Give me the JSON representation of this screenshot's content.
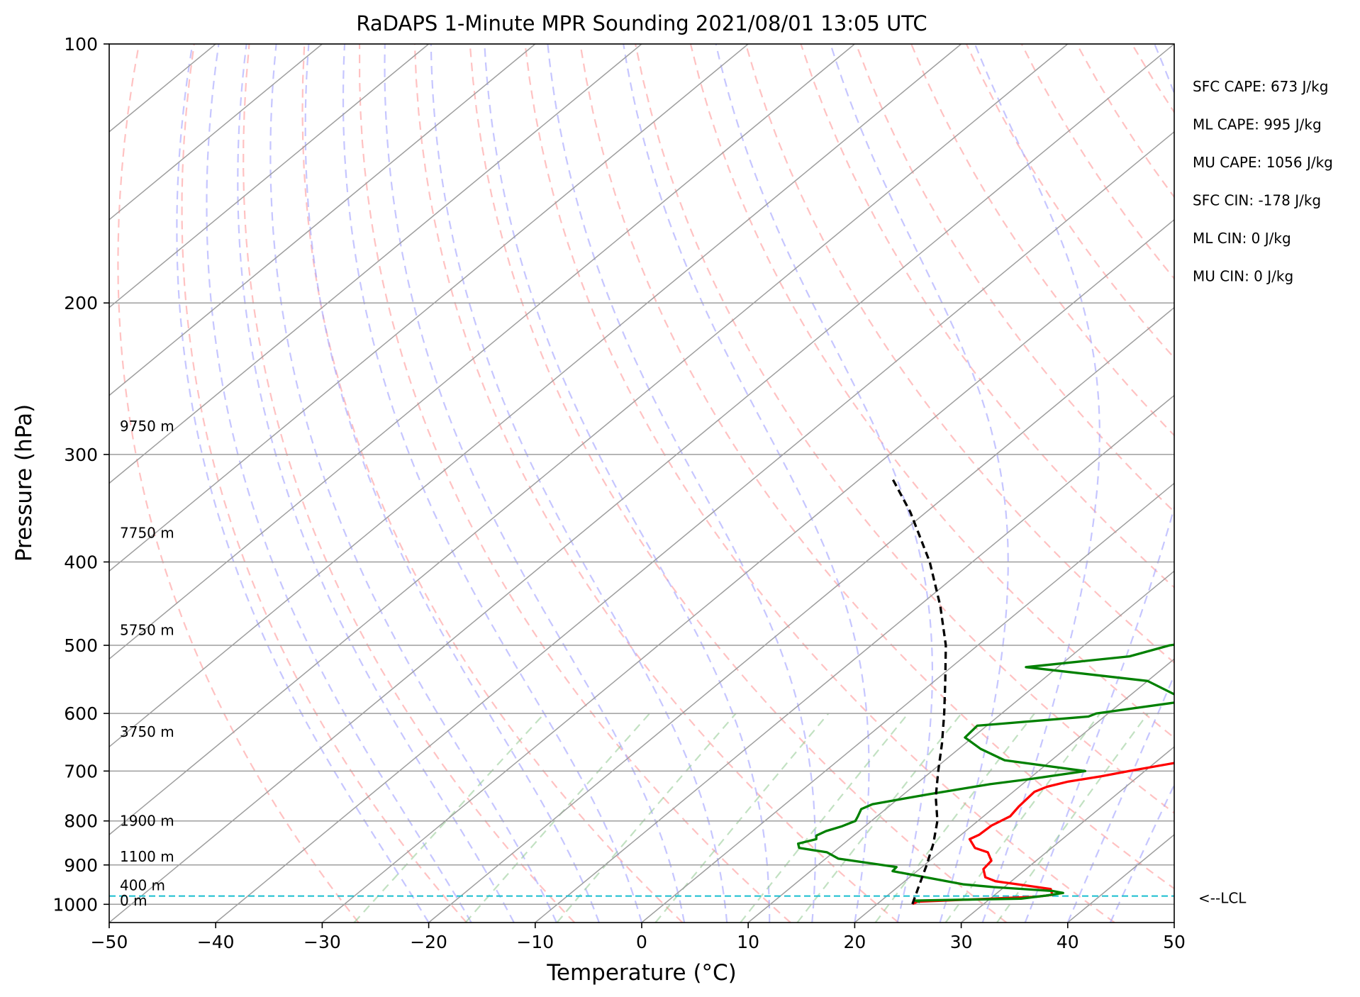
{
  "chart_data": {
    "type": "line",
    "title": "RaDAPS 1-Minute MPR Sounding 2021/08/01 13:05 UTC",
    "xlabel": "Temperature (°C)",
    "ylabel": "Pressure (hPa)",
    "xlim": [
      -50,
      50
    ],
    "ylim": [
      1050,
      100
    ],
    "y_scale": "log",
    "skew": "skew-T log-P",
    "grid": true,
    "x_ticks": [
      "−50",
      "−40",
      "−30",
      "−20",
      "−10",
      "0",
      "10",
      "20",
      "30",
      "40",
      "50"
    ],
    "y_ticks": [
      "100",
      "200",
      "300",
      "400",
      "500",
      "600",
      "700",
      "800",
      "900",
      "1000"
    ],
    "stats": [
      "SFC CAPE: 673 J/kg",
      "ML CAPE: 995 J/kg",
      "MU CAPE: 1056 J/kg",
      "SFC CIN: -178 J/kg",
      "ML CIN: 0 J/kg",
      "MU CIN: 0 J/kg"
    ],
    "height_labels": [
      {
        "text": "0 m",
        "p": 990
      },
      {
        "text": "400 m",
        "p": 950
      },
      {
        "text": "1100 m",
        "p": 880
      },
      {
        "text": "1900 m",
        "p": 800
      },
      {
        "text": "3750 m",
        "p": 630
      },
      {
        "text": "5750 m",
        "p": 480
      },
      {
        "text": "7750 m",
        "p": 370
      },
      {
        "text": "9750 m",
        "p": 278
      }
    ],
    "lcl": {
      "label": "<--LCL",
      "p": 978
    },
    "series": [
      {
        "color": "#ff0000",
        "points": [
          [
            999,
            23.3
          ],
          [
            993,
            23.5
          ],
          [
            980,
            34.1
          ],
          [
            975,
            35.4
          ],
          [
            960,
            34.6
          ],
          [
            950,
            31.6
          ],
          [
            940,
            28.5
          ],
          [
            930,
            27.1
          ],
          [
            910,
            26.0
          ],
          [
            890,
            25.8
          ],
          [
            870,
            24.5
          ],
          [
            860,
            22.8
          ],
          [
            840,
            21.3
          ],
          [
            830,
            21.7
          ],
          [
            810,
            21.8
          ],
          [
            790,
            22.5
          ],
          [
            770,
            22.2
          ],
          [
            740,
            22.0
          ],
          [
            730,
            22.6
          ],
          [
            720,
            24.0
          ],
          [
            710,
            26.5
          ],
          [
            700,
            28.5
          ],
          [
            650,
            40.0
          ],
          [
            640,
            41.0
          ],
          [
            610,
            50.0
          ],
          [
            590,
            52.0
          ],
          [
            570,
            56.0
          ],
          [
            550,
            63.0
          ],
          [
            530,
            60.0
          ],
          [
            510,
            63.0
          ],
          [
            470,
            63.0
          ],
          [
            450,
            62.0
          ],
          [
            430,
            61.0
          ],
          [
            410,
            61.0
          ],
          [
            390,
            63.0
          ],
          [
            380,
            67.0
          ]
        ]
      },
      {
        "color": "#008000",
        "points": [
          [
            994,
            23.8
          ],
          [
            990,
            23.2
          ],
          [
            985,
            32.9
          ],
          [
            977,
            34.9
          ],
          [
            970,
            36.2
          ],
          [
            965,
            35.0
          ],
          [
            955,
            29.0
          ],
          [
            948,
            25.9
          ],
          [
            915,
            17.7
          ],
          [
            905,
            17.6
          ],
          [
            885,
            11.2
          ],
          [
            870,
            9.4
          ],
          [
            860,
            6.3
          ],
          [
            850,
            5.7
          ],
          [
            840,
            6.9
          ],
          [
            832,
            6.5
          ],
          [
            822,
            6.9
          ],
          [
            812,
            7.8
          ],
          [
            800,
            8.5
          ],
          [
            790,
            8.2
          ],
          [
            775,
            7.7
          ],
          [
            765,
            8.2
          ],
          [
            745,
            12.3
          ],
          [
            725,
            17.0
          ],
          [
            715,
            20.2
          ],
          [
            700,
            24.4
          ],
          [
            680,
            15.6
          ],
          [
            660,
            12.1
          ],
          [
            640,
            9.3
          ],
          [
            620,
            9.1
          ],
          [
            605,
            18.5
          ],
          [
            600,
            18.9
          ],
          [
            580,
            26.0
          ],
          [
            550,
            20.0
          ],
          [
            530,
            7.0
          ],
          [
            515,
            15.5
          ],
          [
            500,
            18.0
          ],
          [
            470,
            32.0
          ],
          [
            450,
            35.0
          ],
          [
            440,
            32.0
          ],
          [
            430,
            33.0
          ],
          [
            410,
            24.0
          ],
          [
            400,
            31.0
          ],
          [
            380,
            34.0
          ],
          [
            370,
            32.0
          ],
          [
            350,
            27.0
          ],
          [
            340,
            16.0
          ],
          [
            335,
            20.0
          ],
          [
            325,
            12.0
          ],
          [
            318,
            29.0
          ]
        ]
      },
      {
        "color": "#000000",
        "dash": "dashed",
        "points": [
          [
            999,
            23.3
          ],
          [
            950,
            21.8
          ],
          [
            900,
            20.2
          ],
          [
            850,
            18.4
          ],
          [
            800,
            16.2
          ],
          [
            750,
            13.3
          ],
          [
            700,
            10.6
          ],
          [
            650,
            7.8
          ],
          [
            600,
            4.6
          ],
          [
            550,
            1.0
          ],
          [
            500,
            -3.0
          ],
          [
            450,
            -8.0
          ],
          [
            400,
            -14.0
          ],
          [
            350,
            -21.5
          ],
          [
            320,
            -27.0
          ]
        ]
      }
    ]
  }
}
